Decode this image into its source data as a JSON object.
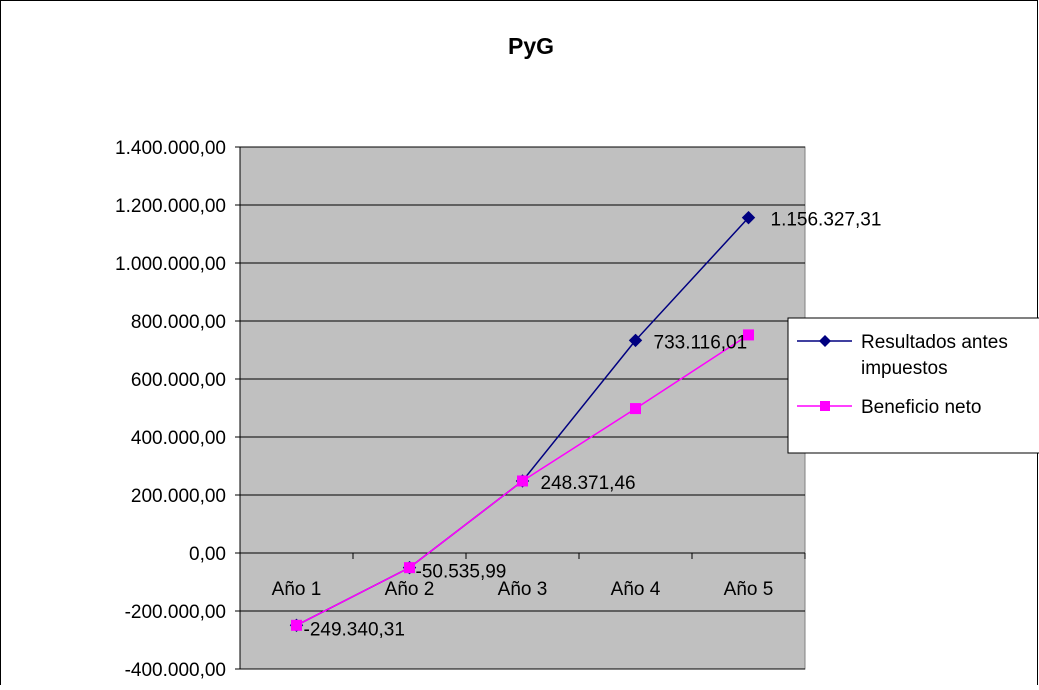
{
  "chart_data": {
    "type": "line",
    "title": "PyG",
    "categories": [
      "Año 1",
      "Año 2",
      "Año 3",
      "Año 4",
      "Año 5"
    ],
    "ylim": [
      -400000,
      1400000
    ],
    "yticks": [
      1400000,
      1200000,
      1000000,
      800000,
      600000,
      400000,
      200000,
      0,
      -200000,
      -400000
    ],
    "ytick_labels": [
      "1.400.000,00",
      "1.200.000,00",
      "1.000.000,00",
      "800.000,00",
      "600.000,00",
      "400.000,00",
      "200.000,00",
      "0,00",
      "-200.000,00",
      "-400.000,00"
    ],
    "grid": true,
    "legend_position": "right",
    "series": [
      {
        "name": "Resultados antes impuestos",
        "marker": "diamond",
        "color": "#000080",
        "values": [
          -249340.31,
          -50535.99,
          248371.46,
          733116.01,
          1156327.31
        ],
        "labels": [
          "-249.340,31",
          "-50.535,99",
          "248.371,46",
          "733.116,01",
          "1.156.327,31"
        ]
      },
      {
        "name": "Beneficio neto",
        "marker": "square",
        "color": "#ff00ff",
        "values": [
          -249340.31,
          -50535.99,
          248371.46,
          498000,
          752000
        ]
      }
    ],
    "plot_background": "#c0c0c0"
  }
}
